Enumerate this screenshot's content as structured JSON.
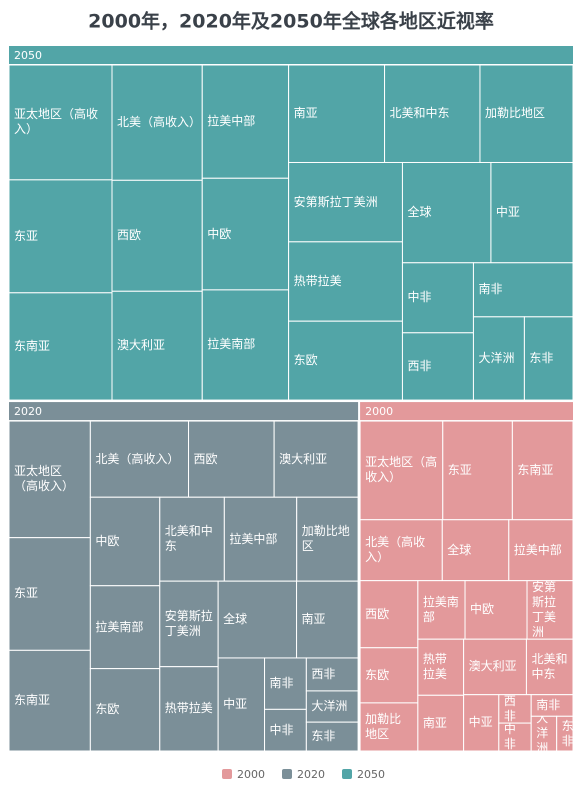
{
  "chart_data": {
    "type": "treemap",
    "title": "2000年，2020年及2050年全球各地区近视率",
    "series": [
      {
        "name": "2050",
        "color": "#52a5a7",
        "categories": [
          "亚太地区（高收入）",
          "东亚",
          "东南亚",
          "北美（高收入）",
          "西欧",
          "澳大利亚",
          "拉美中部",
          "中欧",
          "拉美南部",
          "南亚",
          "北美和中东",
          "加勒比地区",
          "安第斯拉丁美洲",
          "热带拉美",
          "东欧",
          "全球",
          "中亚",
          "中非",
          "西非",
          "南非",
          "大洋洲",
          "东非"
        ],
        "values": [
          66.4,
          65.3,
          62.0,
          58.4,
          56.2,
          55.1,
          54.9,
          54.1,
          53.4,
          52.5,
          52.2,
          50.9,
          50.7,
          50.7,
          50.4,
          49.8,
          46.2,
          27.9,
          26.8,
          30.2,
          23.8,
          22.7
        ]
      },
      {
        "name": "2020",
        "color": "#7b8f98",
        "categories": [
          "亚太地区（高收入）",
          "东亚",
          "东南亚",
          "北美（高收入）",
          "西欧",
          "澳大利亚",
          "中欧",
          "拉美南部",
          "东欧",
          "北美和中东",
          "拉美中部",
          "加勒比地区",
          "安第斯拉丁美洲",
          "热带拉美",
          "全球",
          "南亚",
          "中亚",
          "南非",
          "中非",
          "西非",
          "大洋洲",
          "东非"
        ],
        "values": [
          53.4,
          51.6,
          46.1,
          42.1,
          36.7,
          36.0,
          34.6,
          32.4,
          32.2,
          30.5,
          34.2,
          29.0,
          28.1,
          27.7,
          33.9,
          26.6,
          24.3,
          12.1,
          9.8,
          9.6,
          9.1,
          8.4
        ]
      },
      {
        "name": "2000",
        "color": "#e3999b",
        "categories": [
          "亚太地区（高收入）",
          "东亚",
          "东南亚",
          "北美（高收入）",
          "全球",
          "拉美中部",
          "西欧",
          "东欧",
          "加勒比地区",
          "拉美南部",
          "中欧",
          "安第斯拉丁美洲",
          "热带拉美",
          "南亚",
          "澳大利亚",
          "北美和中东",
          "中亚",
          "西非",
          "中非",
          "南非",
          "大洋洲",
          "东非"
        ],
        "values": [
          46.1,
          38.8,
          33.8,
          28.3,
          22.9,
          22.1,
          21.9,
          18.0,
          15.7,
          15.6,
          20.5,
          15.2,
          14.5,
          14.4,
          19.7,
          14.6,
          11.2,
          5.2,
          5.1,
          5.1,
          5.0,
          3.2
        ]
      }
    ]
  }
}
